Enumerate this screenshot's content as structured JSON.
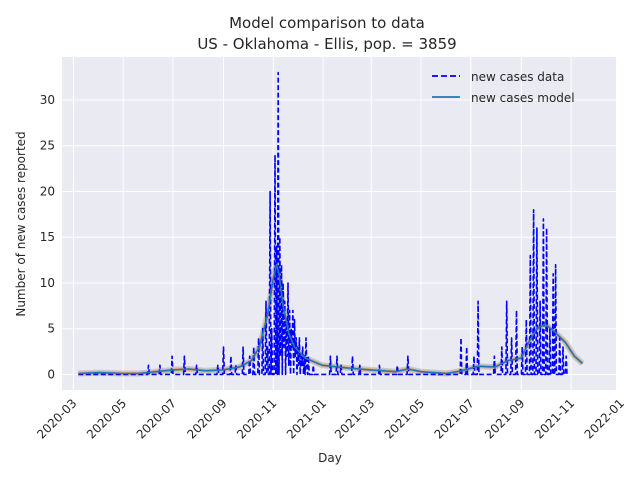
{
  "chart_data": {
    "type": "line",
    "title": "Model comparison to data",
    "subtitle": "US - Oklahoma - Ellis, pop. = 3859",
    "xlabel": "Day",
    "ylabel": "Number of new cases reported",
    "xlim": [
      "2020-02-16",
      "2021-12-26"
    ],
    "ylim": [
      -1.7,
      34.7
    ],
    "grid": true,
    "legend_position": "top-right",
    "x_ticks": [
      "2020-03",
      "2020-05",
      "2020-07",
      "2020-09",
      "2020-11",
      "2021-01",
      "2021-03",
      "2021-05",
      "2021-07",
      "2021-09",
      "2021-11",
      "2022-01"
    ],
    "y_ticks": [
      0,
      5,
      10,
      15,
      20,
      25,
      30
    ],
    "series": [
      {
        "name": "new cases data",
        "style": "dashed",
        "color": "#0000ff",
        "points": [
          [
            "2020-03-07",
            0
          ],
          [
            "2020-05-31",
            0
          ],
          [
            "2020-06-01",
            1
          ],
          [
            "2020-06-02",
            0
          ],
          [
            "2020-06-14",
            0
          ],
          [
            "2020-06-15",
            1
          ],
          [
            "2020-06-16",
            0
          ],
          [
            "2020-06-29",
            0
          ],
          [
            "2020-06-30",
            2
          ],
          [
            "2020-07-01",
            0
          ],
          [
            "2020-07-14",
            0
          ],
          [
            "2020-07-15",
            2
          ],
          [
            "2020-07-16",
            0
          ],
          [
            "2020-07-29",
            0
          ],
          [
            "2020-07-30",
            1
          ],
          [
            "2020-07-31",
            0
          ],
          [
            "2020-08-24",
            0
          ],
          [
            "2020-08-25",
            1
          ],
          [
            "2020-08-26",
            0
          ],
          [
            "2020-08-31",
            0
          ],
          [
            "2020-09-01",
            3
          ],
          [
            "2020-09-02",
            0
          ],
          [
            "2020-09-09",
            0
          ],
          [
            "2020-09-10",
            2
          ],
          [
            "2020-09-11",
            0
          ],
          [
            "2020-09-15",
            0
          ],
          [
            "2020-09-16",
            1
          ],
          [
            "2020-09-17",
            0
          ],
          [
            "2020-09-24",
            0
          ],
          [
            "2020-09-25",
            3
          ],
          [
            "2020-09-26",
            0
          ],
          [
            "2020-10-02",
            0
          ],
          [
            "2020-10-03",
            2
          ],
          [
            "2020-10-04",
            0
          ],
          [
            "2020-10-07",
            0
          ],
          [
            "2020-10-08",
            3
          ],
          [
            "2020-10-09",
            0
          ],
          [
            "2020-10-13",
            0
          ],
          [
            "2020-10-14",
            4
          ],
          [
            "2020-10-15",
            0
          ],
          [
            "2020-10-18",
            0
          ],
          [
            "2020-10-19",
            5
          ],
          [
            "2020-10-20",
            0
          ],
          [
            "2020-10-22",
            0
          ],
          [
            "2020-10-23",
            8
          ],
          [
            "2020-10-24",
            0
          ],
          [
            "2020-10-25",
            3
          ],
          [
            "2020-10-26",
            0
          ],
          [
            "2020-10-27",
            0
          ],
          [
            "2020-10-28",
            20
          ],
          [
            "2020-10-29",
            0
          ],
          [
            "2020-10-30",
            5
          ],
          [
            "2020-10-31",
            0
          ],
          [
            "2020-11-02",
            0
          ],
          [
            "2020-11-03",
            24
          ],
          [
            "2020-11-04",
            0
          ],
          [
            "2020-11-05",
            14
          ],
          [
            "2020-11-06",
            0
          ],
          [
            "2020-11-07",
            33
          ],
          [
            "2020-11-08",
            0
          ],
          [
            "2020-11-09",
            15
          ],
          [
            "2020-11-10",
            2
          ],
          [
            "2020-11-11",
            12
          ],
          [
            "2020-11-12",
            0
          ],
          [
            "2020-11-13",
            10
          ],
          [
            "2020-11-14",
            3
          ],
          [
            "2020-11-15",
            8
          ],
          [
            "2020-11-16",
            0
          ],
          [
            "2020-11-17",
            6
          ],
          [
            "2020-11-18",
            2
          ],
          [
            "2020-11-19",
            10
          ],
          [
            "2020-11-20",
            1
          ],
          [
            "2020-11-21",
            7
          ],
          [
            "2020-11-22",
            0
          ],
          [
            "2020-11-23",
            5
          ],
          [
            "2020-11-24",
            3
          ],
          [
            "2020-11-25",
            7
          ],
          [
            "2020-11-26",
            0
          ],
          [
            "2020-11-27",
            6
          ],
          [
            "2020-11-28",
            2
          ],
          [
            "2020-11-29",
            4
          ],
          [
            "2020-11-30",
            0
          ],
          [
            "2020-12-01",
            3
          ],
          [
            "2020-12-02",
            1
          ],
          [
            "2020-12-03",
            4
          ],
          [
            "2020-12-04",
            0
          ],
          [
            "2020-12-05",
            2
          ],
          [
            "2020-12-06",
            1
          ],
          [
            "2020-12-07",
            3
          ],
          [
            "2020-12-08",
            0
          ],
          [
            "2020-12-09",
            2
          ],
          [
            "2020-12-10",
            0
          ],
          [
            "2020-12-11",
            4
          ],
          [
            "2020-12-12",
            1
          ],
          [
            "2020-12-13",
            0
          ],
          [
            "2020-12-14",
            2
          ],
          [
            "2020-12-15",
            0
          ],
          [
            "2020-12-19",
            0
          ],
          [
            "2020-12-20",
            1
          ],
          [
            "2020-12-21",
            0
          ],
          [
            "2021-01-09",
            0
          ],
          [
            "2021-01-10",
            2
          ],
          [
            "2021-01-11",
            0
          ],
          [
            "2021-01-17",
            0
          ],
          [
            "2021-01-18",
            2
          ],
          [
            "2021-01-19",
            0
          ],
          [
            "2021-01-22",
            0
          ],
          [
            "2021-01-23",
            1
          ],
          [
            "2021-01-24",
            0
          ],
          [
            "2021-02-05",
            0
          ],
          [
            "2021-02-06",
            2
          ],
          [
            "2021-02-07",
            0
          ],
          [
            "2021-02-14",
            0
          ],
          [
            "2021-02-15",
            1
          ],
          [
            "2021-02-16",
            0
          ],
          [
            "2021-03-10",
            0
          ],
          [
            "2021-03-11",
            1
          ],
          [
            "2021-03-12",
            0
          ],
          [
            "2021-04-01",
            0
          ],
          [
            "2021-04-02",
            1
          ],
          [
            "2021-04-03",
            0
          ],
          [
            "2021-04-14",
            0
          ],
          [
            "2021-04-15",
            2
          ],
          [
            "2021-04-16",
            0
          ],
          [
            "2021-06-18",
            0
          ],
          [
            "2021-06-19",
            4
          ],
          [
            "2021-06-20",
            0
          ],
          [
            "2021-06-25",
            0
          ],
          [
            "2021-06-26",
            3
          ],
          [
            "2021-06-27",
            0
          ],
          [
            "2021-07-04",
            0
          ],
          [
            "2021-07-05",
            2
          ],
          [
            "2021-07-06",
            0
          ],
          [
            "2021-07-09",
            0
          ],
          [
            "2021-07-10",
            8
          ],
          [
            "2021-07-11",
            0
          ],
          [
            "2021-07-29",
            0
          ],
          [
            "2021-07-30",
            2
          ],
          [
            "2021-07-31",
            0
          ],
          [
            "2021-08-07",
            0
          ],
          [
            "2021-08-08",
            3
          ],
          [
            "2021-08-09",
            0
          ],
          [
            "2021-08-13",
            0
          ],
          [
            "2021-08-14",
            8
          ],
          [
            "2021-08-15",
            0
          ],
          [
            "2021-08-19",
            0
          ],
          [
            "2021-08-20",
            4
          ],
          [
            "2021-08-21",
            0
          ],
          [
            "2021-08-25",
            0
          ],
          [
            "2021-08-26",
            7
          ],
          [
            "2021-08-27",
            0
          ],
          [
            "2021-09-01",
            0
          ],
          [
            "2021-09-02",
            3
          ],
          [
            "2021-09-03",
            0
          ],
          [
            "2021-09-06",
            0
          ],
          [
            "2021-09-07",
            6
          ],
          [
            "2021-09-08",
            0
          ],
          [
            "2021-09-11",
            0
          ],
          [
            "2021-09-12",
            13
          ],
          [
            "2021-09-13",
            0
          ],
          [
            "2021-09-15",
            0
          ],
          [
            "2021-09-16",
            18
          ],
          [
            "2021-09-17",
            0
          ],
          [
            "2021-09-19",
            0
          ],
          [
            "2021-09-20",
            16
          ],
          [
            "2021-09-21",
            0
          ],
          [
            "2021-09-23",
            0
          ],
          [
            "2021-09-24",
            8
          ],
          [
            "2021-09-25",
            0
          ],
          [
            "2021-09-27",
            0
          ],
          [
            "2021-09-28",
            17
          ],
          [
            "2021-09-29",
            0
          ],
          [
            "2021-10-01",
            0
          ],
          [
            "2021-10-02",
            16
          ],
          [
            "2021-10-03",
            0
          ],
          [
            "2021-10-05",
            0
          ],
          [
            "2021-10-06",
            5
          ],
          [
            "2021-10-07",
            0
          ],
          [
            "2021-10-09",
            0
          ],
          [
            "2021-10-10",
            11
          ],
          [
            "2021-10-11",
            0
          ],
          [
            "2021-10-12",
            0
          ],
          [
            "2021-10-13",
            12
          ],
          [
            "2021-10-14",
            0
          ],
          [
            "2021-10-17",
            0
          ],
          [
            "2021-10-18",
            4
          ],
          [
            "2021-10-19",
            0
          ],
          [
            "2021-10-21",
            0
          ],
          [
            "2021-10-22",
            3
          ],
          [
            "2021-10-23",
            0
          ],
          [
            "2021-10-25",
            0
          ],
          [
            "2021-10-26",
            2
          ],
          [
            "2021-10-27",
            0
          ]
        ]
      },
      {
        "name": "new cases model",
        "style": "solid",
        "color": "#1f77b4",
        "points": [
          [
            "2020-03-07",
            0.1
          ],
          [
            "2020-04-01",
            0.2
          ],
          [
            "2020-05-01",
            0.1
          ],
          [
            "2020-05-20",
            0.1
          ],
          [
            "2020-06-10",
            0.3
          ],
          [
            "2020-07-01",
            0.5
          ],
          [
            "2020-07-20",
            0.6
          ],
          [
            "2020-08-10",
            0.4
          ],
          [
            "2020-08-31",
            0.5
          ],
          [
            "2020-09-20",
            0.8
          ],
          [
            "2020-10-05",
            1.5
          ],
          [
            "2020-10-15",
            3.0
          ],
          [
            "2020-10-25",
            6.5
          ],
          [
            "2020-11-01",
            10.5
          ],
          [
            "2020-11-05",
            12.0
          ],
          [
            "2020-11-08",
            11.0
          ],
          [
            "2020-11-13",
            7.5
          ],
          [
            "2020-11-20",
            4.5
          ],
          [
            "2020-11-27",
            3.0
          ],
          [
            "2020-12-10",
            1.8
          ],
          [
            "2020-12-31",
            1.0
          ],
          [
            "2021-01-31",
            0.7
          ],
          [
            "2021-02-28",
            0.5
          ],
          [
            "2021-03-31",
            0.3
          ],
          [
            "2021-04-15",
            0.6
          ],
          [
            "2021-05-01",
            0.3
          ],
          [
            "2021-06-01",
            0.1
          ],
          [
            "2021-06-20",
            0.4
          ],
          [
            "2021-07-10",
            0.9
          ],
          [
            "2021-07-31",
            0.8
          ],
          [
            "2021-08-15",
            1.5
          ],
          [
            "2021-09-01",
            1.8
          ],
          [
            "2021-09-10",
            3.5
          ],
          [
            "2021-09-20",
            5.0
          ],
          [
            "2021-09-30",
            5.5
          ],
          [
            "2021-10-10",
            4.8
          ],
          [
            "2021-10-25",
            3.5
          ],
          [
            "2021-11-05",
            2.0
          ],
          [
            "2021-11-15",
            1.2
          ]
        ]
      }
    ]
  }
}
